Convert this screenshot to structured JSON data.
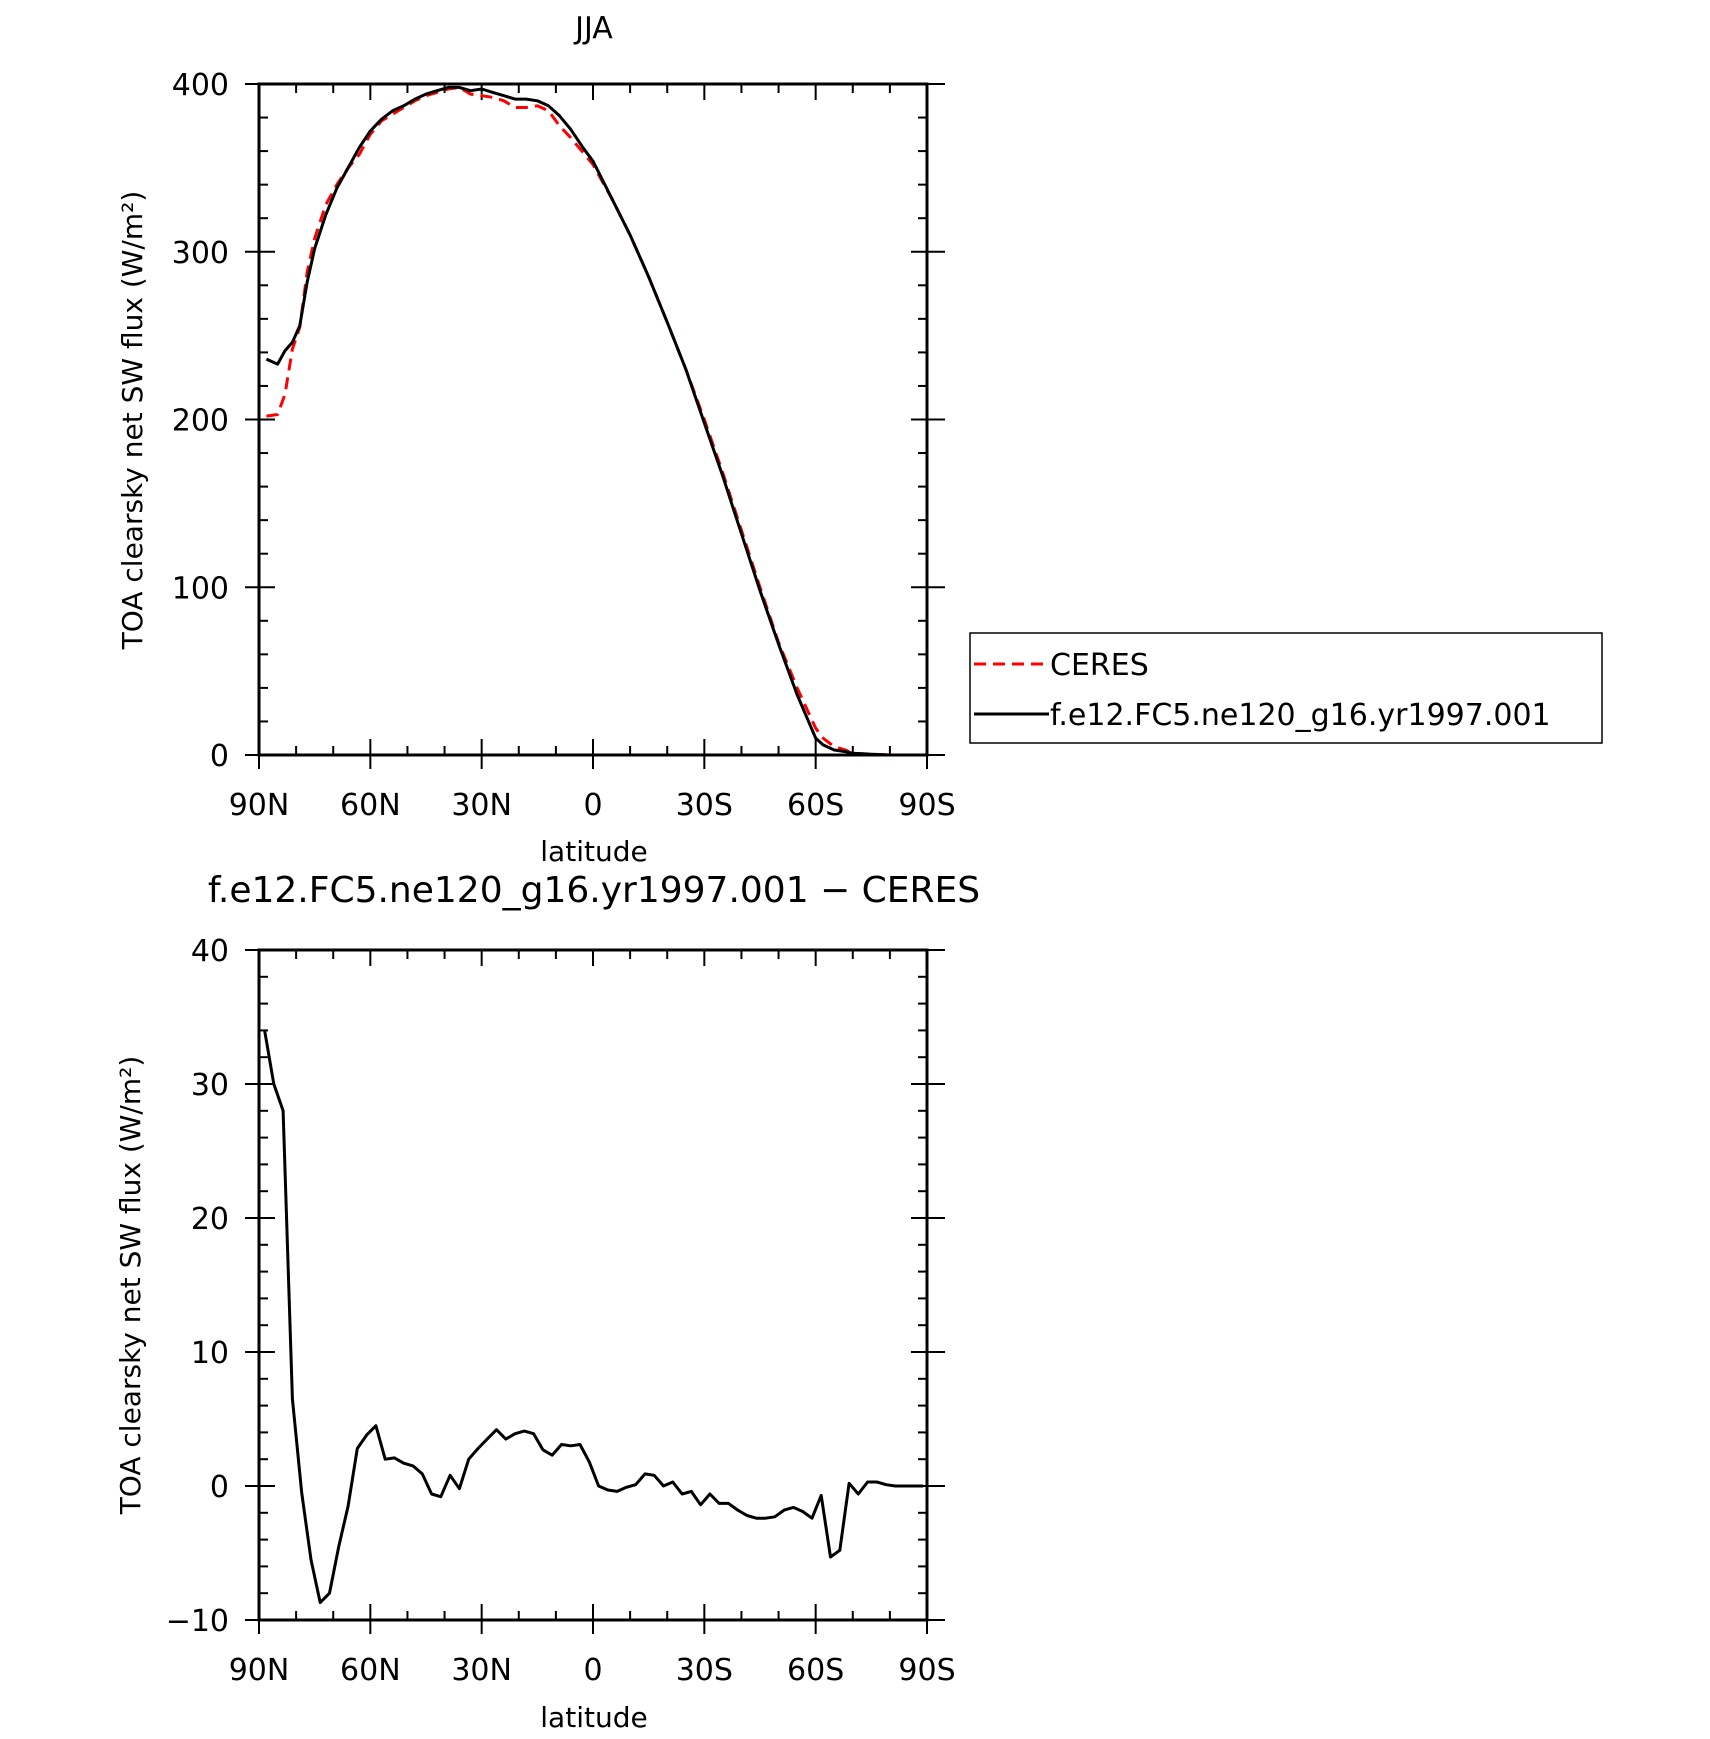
{
  "chart_data": [
    {
      "type": "line",
      "title": "JJA",
      "xlabel": "latitude",
      "ylabel": "TOA clearsky net SW flux (W/m²)",
      "xlim": [
        90,
        -90
      ],
      "ylim": [
        0,
        400
      ],
      "x_ticks": [
        90,
        60,
        30,
        0,
        -30,
        -60,
        -90
      ],
      "x_tick_labels": [
        "90N",
        "60N",
        "30N",
        "0",
        "30S",
        "60S",
        "90S"
      ],
      "y_ticks": [
        0,
        100,
        200,
        300,
        400
      ],
      "y_tick_labels": [
        "0",
        "100",
        "200",
        "300",
        "400"
      ],
      "legend_position": "right",
      "series": [
        {
          "name": "CERES",
          "color": "#ff0000",
          "dash": true,
          "x": [
            88,
            85,
            83,
            81,
            79,
            77,
            75,
            72,
            69,
            66,
            63,
            60,
            57,
            54,
            51,
            48,
            45,
            42,
            39,
            36,
            33,
            30,
            27,
            24,
            21,
            18,
            15,
            12,
            9,
            6,
            3,
            0,
            -5,
            -10,
            -15,
            -20,
            -25,
            -30,
            -35,
            -40,
            -45,
            -50,
            -55,
            -60,
            -62,
            -65,
            -68,
            -70,
            -75,
            -80,
            -85,
            -88
          ],
          "y": [
            202,
            203,
            215,
            242,
            255,
            288,
            308,
            328,
            340,
            350,
            358,
            370,
            378,
            382,
            386,
            390,
            393,
            395,
            397,
            398,
            394,
            393,
            392,
            390,
            386,
            386,
            387,
            384,
            375,
            368,
            360,
            352,
            332,
            310,
            285,
            258,
            230,
            200,
            168,
            134,
            100,
            67,
            40,
            16,
            10,
            5,
            3,
            1,
            0.5,
            0,
            0,
            0
          ]
        },
        {
          "name": "f.e12.FC5.ne120_g16.yr1997.001",
          "color": "#000000",
          "dash": false,
          "x": [
            88,
            85,
            83,
            81,
            79,
            77,
            75,
            72,
            69,
            66,
            63,
            60,
            57,
            54,
            51,
            48,
            45,
            42,
            39,
            36,
            33,
            30,
            27,
            24,
            21,
            18,
            15,
            12,
            9,
            6,
            3,
            0,
            -5,
            -10,
            -15,
            -20,
            -25,
            -30,
            -35,
            -40,
            -45,
            -50,
            -55,
            -60,
            -62,
            -65,
            -68,
            -70,
            -75,
            -80,
            -85,
            -88
          ],
          "y": [
            236,
            233,
            241,
            246,
            256,
            282,
            302,
            322,
            338,
            350,
            362,
            372,
            379,
            384,
            387,
            391,
            394,
            396,
            398,
            398,
            396,
            397,
            395,
            393,
            391,
            391,
            390,
            387,
            381,
            373,
            363,
            354,
            332,
            310,
            285,
            258,
            230,
            198,
            166,
            132,
            98,
            66,
            36,
            10,
            6,
            3,
            2,
            1,
            0.5,
            0,
            0,
            0
          ]
        }
      ]
    },
    {
      "type": "line",
      "title": "f.e12.FC5.ne120_g16.yr1997.001 − CERES",
      "xlabel": "latitude",
      "ylabel": "TOA clearsky net SW flux (W/m²)",
      "xlim": [
        90,
        -90
      ],
      "ylim": [
        -10,
        40
      ],
      "x_ticks": [
        90,
        60,
        30,
        0,
        -30,
        -60,
        -90
      ],
      "x_tick_labels": [
        "90N",
        "60N",
        "30N",
        "0",
        "30S",
        "60S",
        "90S"
      ],
      "y_ticks": [
        -10,
        0,
        10,
        20,
        30,
        40
      ],
      "y_tick_labels": [
        "−10",
        "0",
        "10",
        "20",
        "30",
        "40"
      ],
      "series": [
        {
          "color": "#000000",
          "x": [
            88.5,
            86,
            83.5,
            81,
            78.5,
            76,
            73.5,
            71,
            68.5,
            66,
            63.5,
            61,
            58.5,
            56,
            53.5,
            51,
            48.5,
            46,
            43.5,
            41,
            38.5,
            36,
            33.5,
            31,
            28.5,
            26,
            23.5,
            21,
            18.5,
            16,
            13.5,
            11,
            8.5,
            6,
            3.5,
            1,
            -1.5,
            -4,
            -6.5,
            -9,
            -11.5,
            -14,
            -16.5,
            -19,
            -21.5,
            -24,
            -26.5,
            -29,
            -31.5,
            -34,
            -36.5,
            -39,
            -41.5,
            -44,
            -46.5,
            -49,
            -51.5,
            -54,
            -56.5,
            -59,
            -61.5,
            -64,
            -66.5,
            -69,
            -71.5,
            -74,
            -76.5,
            -79,
            -81.5,
            -84,
            -86.5,
            -89
          ],
          "y": [
            34.0,
            30.0,
            28.0,
            6.5,
            -0.5,
            -5.5,
            -8.7,
            -8.0,
            -4.5,
            -1.5,
            2.8,
            3.8,
            4.5,
            2.0,
            2.1,
            1.7,
            1.5,
            0.9,
            -0.6,
            -0.8,
            0.8,
            -0.2,
            2.0,
            2.8,
            3.5,
            4.2,
            3.5,
            3.9,
            4.1,
            3.9,
            2.7,
            2.3,
            3.1,
            3.0,
            3.1,
            1.8,
            0.0,
            -0.3,
            -0.4,
            -0.1,
            0.1,
            0.9,
            0.8,
            0.0,
            0.3,
            -0.6,
            -0.4,
            -1.4,
            -0.6,
            -1.3,
            -1.3,
            -1.8,
            -2.2,
            -2.4,
            -2.4,
            -2.3,
            -1.8,
            -1.6,
            -1.9,
            -2.4,
            -0.7,
            -5.3,
            -4.8,
            0.2,
            -0.6,
            0.3,
            0.3,
            0.1,
            0.0,
            0.0,
            0.0,
            0.0
          ]
        }
      ]
    }
  ],
  "legend": {
    "items": [
      {
        "label": "CERES",
        "color": "#ff0000",
        "dash": true
      },
      {
        "label": "f.e12.FC5.ne120_g16.yr1997.001",
        "color": "#000000",
        "dash": false
      }
    ]
  }
}
